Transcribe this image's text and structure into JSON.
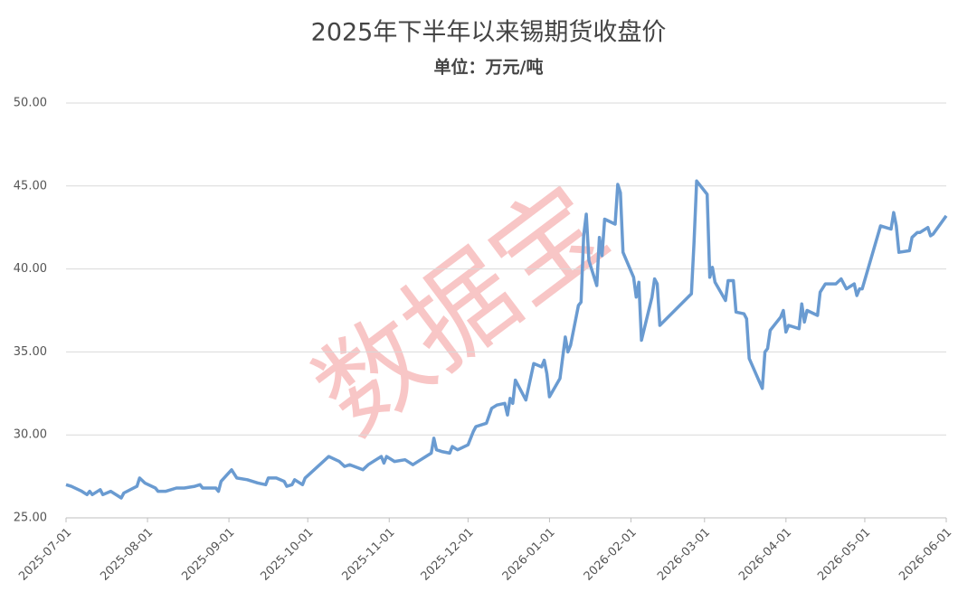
{
  "chart_data": {
    "type": "line",
    "title": "2025年下半年以来锡期货收盘价",
    "subtitle": "单位：万元/吨",
    "watermark": "数据宝",
    "grid": true,
    "x": [
      "2025-07-01",
      "2025-07-03",
      "2025-07-07",
      "2025-07-09",
      "2025-07-10",
      "2025-07-11",
      "2025-07-14",
      "2025-07-15",
      "2025-07-18",
      "2025-07-21",
      "2025-07-22",
      "2025-07-23",
      "2025-07-28",
      "2025-07-29",
      "2025-07-31",
      "2025-08-04",
      "2025-08-05",
      "2025-08-08",
      "2025-08-12",
      "2025-08-15",
      "2025-08-19",
      "2025-08-21",
      "2025-08-22",
      "2025-08-27",
      "2025-08-28",
      "2025-08-29",
      "2025-09-02",
      "2025-09-04",
      "2025-09-08",
      "2025-09-12",
      "2025-09-15",
      "2025-09-16",
      "2025-09-19",
      "2025-09-22",
      "2025-09-23",
      "2025-09-25",
      "2025-09-26",
      "2025-09-29",
      "2025-09-30",
      "2025-10-09",
      "2025-10-13",
      "2025-10-15",
      "2025-10-17",
      "2025-10-22",
      "2025-10-24",
      "2025-10-27",
      "2025-10-29",
      "2025-10-30",
      "2025-10-31",
      "2025-11-03",
      "2025-11-07",
      "2025-11-10",
      "2025-11-13",
      "2025-11-17",
      "2025-11-18",
      "2025-11-19",
      "2025-11-21",
      "2025-11-24",
      "2025-11-25",
      "2025-11-27",
      "2025-12-01",
      "2025-12-03",
      "2025-12-04",
      "2025-12-08",
      "2025-12-10",
      "2025-12-12",
      "2025-12-15",
      "2025-12-16",
      "2025-12-17",
      "2025-12-18",
      "2025-12-19",
      "2025-12-23",
      "2025-12-26",
      "2025-12-29",
      "2025-12-30",
      "2025-12-31",
      "2026-01-01",
      "2026-01-05",
      "2026-01-07",
      "2026-01-08",
      "2026-01-09",
      "2026-01-12",
      "2026-01-13",
      "2026-01-14",
      "2026-01-15",
      "2026-01-16",
      "2026-01-19",
      "2026-01-20",
      "2026-01-21",
      "2026-01-22",
      "2026-01-26",
      "2026-01-27",
      "2026-01-28",
      "2026-01-29",
      "2026-02-02",
      "2026-02-03",
      "2026-02-04",
      "2026-02-05",
      "2026-02-09",
      "2026-02-10",
      "2026-02-11",
      "2026-02-12",
      "2026-02-24",
      "2026-02-25",
      "2026-02-26",
      "2026-03-02",
      "2026-03-03",
      "2026-03-04",
      "2026-03-05",
      "2026-03-09",
      "2026-03-10",
      "2026-03-12",
      "2026-03-13",
      "2026-03-16",
      "2026-03-17",
      "2026-03-18",
      "2026-03-23",
      "2026-03-24",
      "2026-03-25",
      "2026-03-26",
      "2026-03-30",
      "2026-03-31",
      "2026-04-01",
      "2026-04-02",
      "2026-04-06",
      "2026-04-07",
      "2026-04-08",
      "2026-04-09",
      "2026-04-13",
      "2026-04-14",
      "2026-04-16",
      "2026-04-20",
      "2026-04-22",
      "2026-04-24",
      "2026-04-27",
      "2026-04-28",
      "2026-04-29",
      "2026-04-30",
      "2026-05-07",
      "2026-05-11",
      "2026-05-12",
      "2026-05-13",
      "2026-05-14",
      "2026-05-18",
      "2026-05-19",
      "2026-05-21",
      "2026-05-22",
      "2026-05-25",
      "2026-05-26",
      "2026-05-27",
      "2026-06-01"
    ],
    "series": [
      {
        "color": "#6a9bd1",
        "values": [
          27.0,
          26.9,
          26.6,
          26.4,
          26.6,
          26.4,
          26.7,
          26.4,
          26.6,
          26.3,
          26.2,
          26.5,
          26.9,
          27.4,
          27.1,
          26.8,
          26.6,
          26.6,
          26.8,
          26.8,
          26.9,
          27.0,
          26.8,
          26.8,
          26.6,
          27.2,
          27.9,
          27.4,
          27.3,
          27.1,
          27.0,
          27.4,
          27.4,
          27.2,
          26.9,
          27.0,
          27.3,
          27.0,
          27.4,
          28.7,
          28.4,
          28.1,
          28.2,
          27.9,
          28.2,
          28.5,
          28.7,
          28.3,
          28.7,
          28.4,
          28.5,
          28.2,
          28.5,
          28.9,
          29.8,
          29.1,
          29.0,
          28.9,
          29.3,
          29.1,
          29.4,
          30.2,
          30.5,
          30.7,
          31.6,
          31.8,
          31.9,
          31.2,
          32.2,
          31.9,
          33.3,
          32.1,
          34.3,
          34.1,
          34.5,
          33.7,
          32.3,
          33.4,
          35.9,
          35.0,
          35.4,
          37.8,
          38.0,
          42.0,
          43.3,
          40.5,
          39.0,
          41.9,
          40.8,
          43.0,
          42.7,
          45.1,
          44.6,
          41.0,
          39.5,
          38.3,
          39.2,
          35.7,
          38.3,
          39.4,
          39.1,
          36.6,
          38.5,
          41.6,
          45.3,
          44.5,
          39.5,
          40.1,
          39.2,
          38.1,
          39.3,
          39.3,
          37.4,
          37.3,
          37.0,
          34.6,
          32.8,
          35.0,
          35.2,
          36.3,
          37.1,
          37.5,
          36.2,
          36.6,
          36.4,
          37.9,
          36.8,
          37.5,
          37.2,
          38.6,
          39.1,
          39.1,
          39.4,
          38.8,
          39.1,
          38.4,
          38.8,
          38.8,
          42.6,
          42.4,
          43.4,
          42.6,
          41.0,
          41.1,
          41.9,
          42.2,
          42.2,
          42.5,
          42.0,
          42.1,
          43.2
        ]
      }
    ],
    "xlim": [
      "2025-07-01",
      "2026-06-01"
    ],
    "xticks": [
      "2025-07-01",
      "2025-08-01",
      "2025-09-01",
      "2025-10-01",
      "2025-11-01",
      "2025-12-01",
      "2026-01-01",
      "2026-02-01",
      "2026-03-01",
      "2026-04-01",
      "2026-05-01",
      "2026-06-01"
    ],
    "ylim": [
      25,
      50
    ],
    "yticks": [
      {
        "value": 25,
        "label": "25.00"
      },
      {
        "value": 30,
        "label": "30.00"
      },
      {
        "value": 35,
        "label": "35.00"
      },
      {
        "value": 40,
        "label": "40.00"
      },
      {
        "value": 45,
        "label": "45.00"
      },
      {
        "value": 50,
        "label": "50.00"
      }
    ]
  }
}
